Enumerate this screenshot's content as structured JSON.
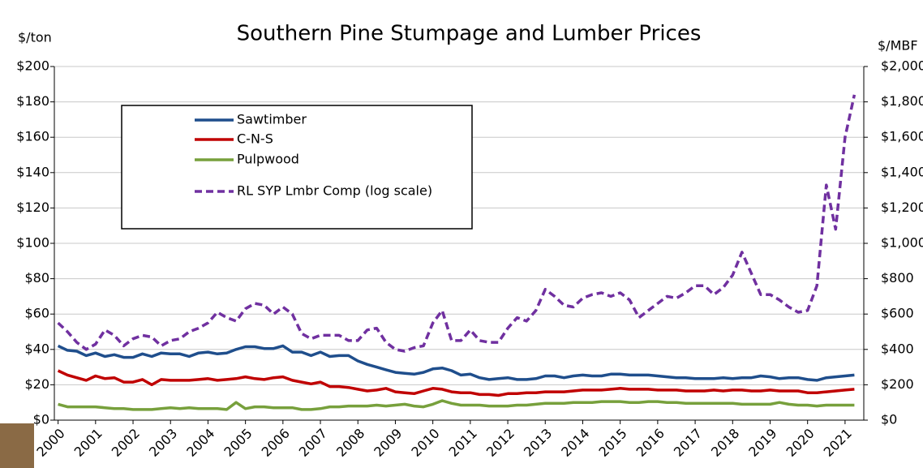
{
  "chart_data": {
    "type": "line",
    "title": "Southern Pine Stumpage and Lumber Prices",
    "y_label": "$/ton",
    "y2_label": "$/MBF",
    "x": [
      2000,
      2000.25,
      2000.5,
      2000.75,
      2001,
      2001.25,
      2001.5,
      2001.75,
      2002,
      2002.25,
      2002.5,
      2002.75,
      2003,
      2003.25,
      2003.5,
      2003.75,
      2004,
      2004.25,
      2004.5,
      2004.75,
      2005,
      2005.25,
      2005.5,
      2005.75,
      2006,
      2006.25,
      2006.5,
      2006.75,
      2007,
      2007.25,
      2007.5,
      2007.75,
      2008,
      2008.25,
      2008.5,
      2008.75,
      2009,
      2009.25,
      2009.5,
      2009.75,
      2010,
      2010.25,
      2010.5,
      2010.75,
      2011,
      2011.25,
      2011.5,
      2011.75,
      2012,
      2012.25,
      2012.5,
      2012.75,
      2013,
      2013.25,
      2013.5,
      2013.75,
      2014,
      2014.25,
      2014.5,
      2014.75,
      2015,
      2015.25,
      2015.5,
      2015.75,
      2016,
      2016.25,
      2016.5,
      2016.75,
      2017,
      2017.25,
      2017.5,
      2017.75,
      2018,
      2018.25,
      2018.5,
      2018.75,
      2019,
      2019.25,
      2019.5,
      2019.75,
      2020,
      2020.25,
      2020.5,
      2020.75,
      2021,
      2021.25
    ],
    "xlim": [
      1999.9,
      2021.5
    ],
    "xticks": [
      2000,
      2001,
      2002,
      2003,
      2004,
      2005,
      2006,
      2007,
      2008,
      2009,
      2010,
      2011,
      2012,
      2013,
      2014,
      2015,
      2016,
      2017,
      2018,
      2019,
      2020,
      2021
    ],
    "ylim": [
      0,
      200
    ],
    "yticks": [
      {
        "value": 0,
        "label": "$0"
      },
      {
        "value": 20,
        "label": "$20"
      },
      {
        "value": 40,
        "label": "$40"
      },
      {
        "value": 60,
        "label": "$60"
      },
      {
        "value": 80,
        "label": "$80"
      },
      {
        "value": 100,
        "label": "$100"
      },
      {
        "value": 120,
        "label": "$120"
      },
      {
        "value": 140,
        "label": "$140"
      },
      {
        "value": 160,
        "label": "$160"
      },
      {
        "value": 180,
        "label": "$180"
      },
      {
        "value": 200,
        "label": "$200"
      }
    ],
    "y2lim": [
      0,
      2000
    ],
    "y2ticks": [
      {
        "value": 0,
        "label": "$0"
      },
      {
        "value": 200,
        "label": "$200"
      },
      {
        "value": 400,
        "label": "$400"
      },
      {
        "value": 600,
        "label": "$600"
      },
      {
        "value": 800,
        "label": "$800"
      },
      {
        "value": 1000,
        "label": "$1,000"
      },
      {
        "value": 1200,
        "label": "$1,200"
      },
      {
        "value": 1400,
        "label": "$1,400"
      },
      {
        "value": 1600,
        "label": "$1,600"
      },
      {
        "value": 1800,
        "label": "$1,800"
      },
      {
        "value": 2000,
        "label": "$2,000"
      }
    ],
    "grid": true,
    "series": [
      {
        "name": "Sawtimber",
        "color": "#1f4e8c",
        "values": [
          42,
          39.5,
          39,
          36.5,
          38,
          36,
          37,
          35.5,
          35.5,
          37.5,
          36,
          38,
          37.5,
          37.5,
          36,
          38,
          38.5,
          37.5,
          38,
          40,
          41.5,
          41.5,
          40.5,
          40.5,
          42,
          38.5,
          38.5,
          36.5,
          38.5,
          36,
          36.5,
          36.5,
          33.5,
          31.5,
          30,
          28.5,
          27,
          26.5,
          26,
          27,
          29,
          29.5,
          28,
          25.5,
          26,
          24,
          23,
          23.5,
          24,
          23,
          23,
          23.5,
          25,
          25,
          24,
          25,
          25.5,
          25,
          25,
          26,
          26,
          25.5,
          25.5,
          25.5,
          25,
          24.5,
          24,
          24,
          23.5,
          23.5,
          23.5,
          24,
          23.5,
          24,
          24,
          25,
          24.5,
          23.5,
          24,
          24,
          23,
          22.5,
          24,
          24.5,
          25,
          25.5
        ]
      },
      {
        "name": "C-N-S",
        "color": "#c00000",
        "values": [
          28,
          25.5,
          24,
          22.5,
          25,
          23.5,
          24,
          21.5,
          21.5,
          23,
          20,
          23,
          22.5,
          22.5,
          22.5,
          23,
          23.5,
          22.5,
          23,
          23.5,
          24.5,
          23.5,
          23,
          24,
          24.5,
          22.5,
          21.5,
          20.5,
          21.5,
          19,
          19,
          18.5,
          17.5,
          16.5,
          17,
          18,
          16,
          15.5,
          15,
          16.5,
          18,
          17.5,
          16,
          15.5,
          15.5,
          14.5,
          14.5,
          14,
          15,
          15,
          15.5,
          15.5,
          16,
          16,
          16,
          16.5,
          17,
          17,
          17,
          17.5,
          18,
          17.5,
          17.5,
          17.5,
          17,
          17,
          17,
          16.5,
          16.5,
          16.5,
          17,
          16.5,
          17,
          17,
          16.5,
          16.5,
          17,
          16.5,
          16.5,
          16.5,
          15.5,
          15.5,
          16,
          16.5,
          17,
          17.5
        ]
      },
      {
        "name": "Pulpwood",
        "color": "#77a03c",
        "values": [
          9,
          7.5,
          7.5,
          7.5,
          7.5,
          7,
          6.5,
          6.5,
          6,
          6,
          6,
          6.5,
          7,
          6.5,
          7,
          6.5,
          6.5,
          6.5,
          6,
          10,
          6.5,
          7.5,
          7.5,
          7,
          7,
          7,
          6,
          6,
          6.5,
          7.5,
          7.5,
          8,
          8,
          8,
          8.5,
          8,
          8.5,
          9,
          8,
          7.5,
          9,
          11,
          9.5,
          8.5,
          8.5,
          8.5,
          8,
          8,
          8,
          8.5,
          8.5,
          9,
          9.5,
          9.5,
          9.5,
          10,
          10,
          10,
          10.5,
          10.5,
          10.5,
          10,
          10,
          10.5,
          10.5,
          10,
          10,
          9.5,
          9.5,
          9.5,
          9.5,
          9.5,
          9.5,
          9,
          9,
          9,
          9,
          10,
          9,
          8.5,
          8.5,
          8,
          8.5,
          8.5,
          8.5,
          8.5
        ]
      },
      {
        "name": "RL SYP Lmbr Comp (log scale)",
        "color": "#7030a0",
        "dashed": true,
        "axis": "y2",
        "values": [
          550,
          500,
          440,
          400,
          430,
          510,
          480,
          420,
          460,
          480,
          470,
          420,
          450,
          460,
          500,
          520,
          550,
          610,
          580,
          560,
          630,
          660,
          650,
          600,
          640,
          600,
          490,
          460,
          480,
          480,
          480,
          450,
          450,
          510,
          520,
          440,
          400,
          390,
          410,
          420,
          550,
          620,
          450,
          450,
          510,
          450,
          440,
          440,
          520,
          580,
          560,
          620,
          740,
          700,
          650,
          640,
          690,
          710,
          720,
          700,
          720,
          680,
          580,
          620,
          660,
          700,
          690,
          720,
          760,
          760,
          710,
          750,
          820,
          950,
          830,
          710,
          710,
          680,
          640,
          610,
          620,
          760,
          1330,
          1080,
          1600,
          1840
        ]
      }
    ]
  }
}
